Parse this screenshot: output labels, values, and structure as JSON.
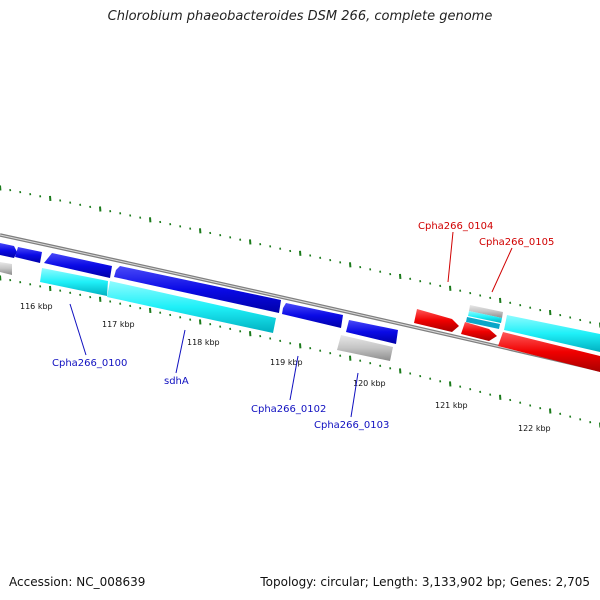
{
  "title": "Chlorobium phaeobacteroides DSM 266, complete genome",
  "footer": {
    "accession_label": "Accession:",
    "accession": "NC_008639",
    "topology": "Topology: circular; Length: 3,133,902 bp; Genes: 2,705"
  },
  "colors": {
    "backbone": "#7a7a7a",
    "ticks": "#1a7a1a",
    "forward_gene": "#1010e0",
    "reverse_gene": "#e01010",
    "cds_cyan": "#20e8f0",
    "rna_grey": "#c8c8c8",
    "label_blue": "#1010c0",
    "label_red": "#d00000"
  },
  "ticks": [
    "116 kbp",
    "117 kbp",
    "118 kbp",
    "119 kbp",
    "120 kbp",
    "121 kbp",
    "122 kbp"
  ],
  "gene_labels": [
    {
      "name": "Cpha266_0100",
      "color": "label_blue"
    },
    {
      "name": "sdhA",
      "color": "label_blue"
    },
    {
      "name": "Cpha266_0102",
      "color": "label_blue"
    },
    {
      "name": "Cpha266_0103",
      "color": "label_blue"
    },
    {
      "name": "Cpha266_0104",
      "color": "label_red"
    },
    {
      "name": "Cpha266_0105",
      "color": "label_red"
    }
  ]
}
